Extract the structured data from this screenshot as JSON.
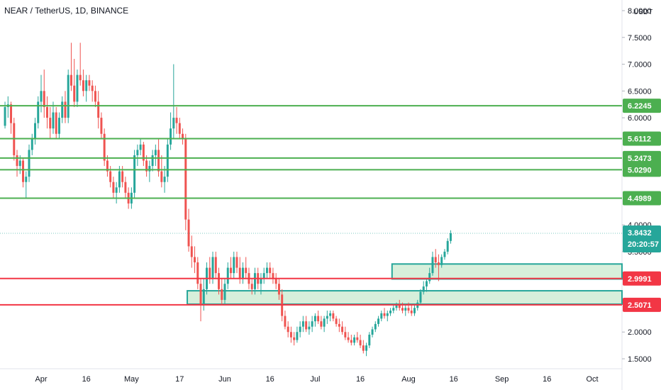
{
  "header": {
    "title": "NEAR / TetherUS, 1D, BINANCE",
    "currency": "USDT"
  },
  "colors": {
    "up": "#26a69a",
    "down": "#ef5350",
    "support": "#4caf50",
    "resistance": "#f23645",
    "zone_fill": "#d7efdb",
    "zone_stroke": "#26a69a",
    "price_tag": "#26a69a"
  },
  "price_axis": {
    "ticks": [
      "8.0000",
      "7.5000",
      "7.0000",
      "6.5000",
      "6.0000",
      "4.0000",
      "3.5000",
      "2.0000",
      "1.5000"
    ]
  },
  "time_axis": {
    "labels": [
      "Apr",
      "16",
      "May",
      "17",
      "Jun",
      "16",
      "Jul",
      "16",
      "Aug",
      "16",
      "Sep",
      "16",
      "Oct"
    ]
  },
  "levels": [
    {
      "price": 6.2245,
      "label": "6.2245",
      "kind": "support"
    },
    {
      "price": 5.6112,
      "label": "5.6112",
      "kind": "support"
    },
    {
      "price": 5.2473,
      "label": "5.2473",
      "kind": "support"
    },
    {
      "price": 5.029,
      "label": "5.0290",
      "kind": "support"
    },
    {
      "price": 4.4989,
      "label": "4.4989",
      "kind": "support"
    },
    {
      "price": 2.9991,
      "label": "2.9991",
      "kind": "resistance"
    },
    {
      "price": 2.5071,
      "label": "2.5071",
      "kind": "resistance"
    }
  ],
  "current_price": {
    "price": 3.8432,
    "label": "3.8432",
    "countdown": "20:20:57"
  },
  "zones": [
    {
      "from_date": "Jul 27",
      "top": 3.27,
      "bottom": 2.99
    },
    {
      "from_date": "May 20",
      "top": 2.77,
      "bottom": 2.52
    }
  ],
  "chart_data": {
    "type": "candlestick",
    "title": "NEAR / TetherUS, 1D, BINANCE",
    "ylabel": "USDT",
    "ylim": [
      1.35,
      8.1
    ],
    "y_scale": "linear",
    "x_range": [
      "Mar 20",
      "Oct 11"
    ],
    "candles": [
      [
        "Mar 20",
        5.85,
        6.3,
        5.8,
        6.2
      ],
      [
        "Mar 21",
        6.2,
        6.4,
        6.0,
        6.25
      ],
      [
        "Mar 22",
        6.25,
        6.3,
        5.7,
        5.9
      ],
      [
        "Mar 23",
        5.9,
        6.0,
        5.2,
        5.3
      ],
      [
        "Mar 24",
        5.3,
        5.4,
        4.9,
        5.1
      ],
      [
        "Mar 25",
        5.1,
        5.3,
        4.95,
        5.2
      ],
      [
        "Mar 26",
        5.2,
        5.25,
        4.7,
        4.8
      ],
      [
        "Mar 27",
        4.8,
        5.0,
        4.5,
        4.9
      ],
      [
        "Mar 28",
        4.9,
        5.5,
        4.8,
        5.4
      ],
      [
        "Mar 29",
        5.4,
        5.7,
        5.3,
        5.6
      ],
      [
        "Mar 30",
        5.6,
        6.0,
        5.5,
        5.9
      ],
      [
        "Mar 31",
        5.9,
        6.4,
        5.8,
        6.3
      ],
      [
        "Apr 1",
        6.3,
        6.8,
        6.1,
        6.5
      ],
      [
        "Apr 2",
        6.5,
        6.9,
        6.0,
        6.2
      ],
      [
        "Apr 3",
        6.2,
        6.4,
        5.8,
        6.0
      ],
      [
        "Apr 4",
        6.0,
        6.2,
        5.6,
        5.8
      ],
      [
        "Apr 5",
        5.8,
        6.3,
        5.7,
        6.1
      ],
      [
        "Apr 6",
        6.1,
        6.2,
        5.6,
        5.7
      ],
      [
        "Apr 7",
        5.7,
        6.1,
        5.6,
        6.0
      ],
      [
        "Apr 8",
        6.0,
        6.4,
        5.9,
        6.3
      ],
      [
        "Apr 9",
        6.3,
        6.5,
        5.9,
        6.0
      ],
      [
        "Apr 10",
        6.0,
        6.9,
        5.9,
        6.8
      ],
      [
        "Apr 11",
        6.8,
        7.4,
        6.5,
        6.6
      ],
      [
        "Apr 12",
        6.6,
        7.1,
        6.2,
        6.3
      ],
      [
        "Apr 13",
        6.3,
        6.9,
        6.2,
        6.8
      ],
      [
        "Apr 14",
        6.8,
        7.4,
        6.6,
        6.7
      ],
      [
        "Apr 15",
        6.7,
        6.9,
        6.4,
        6.5
      ],
      [
        "Apr 16",
        6.5,
        6.8,
        6.3,
        6.7
      ],
      [
        "Apr 17",
        6.7,
        6.8,
        6.5,
        6.6
      ],
      [
        "Apr 18",
        6.6,
        6.7,
        6.3,
        6.5
      ],
      [
        "Apr 19",
        6.5,
        6.6,
        6.2,
        6.3
      ],
      [
        "Apr 20",
        6.3,
        6.5,
        5.8,
        6.0
      ],
      [
        "Apr 21",
        6.0,
        6.1,
        5.6,
        5.7
      ],
      [
        "Apr 22",
        5.7,
        5.8,
        5.1,
        5.2
      ],
      [
        "Apr 23",
        5.2,
        5.3,
        4.9,
        5.0
      ],
      [
        "Apr 24",
        5.0,
        5.1,
        4.7,
        4.8
      ],
      [
        "Apr 25",
        4.8,
        4.9,
        4.5,
        4.6
      ],
      [
        "Apr 26",
        4.6,
        4.8,
        4.4,
        4.7
      ],
      [
        "Apr 27",
        4.7,
        5.1,
        4.6,
        5.0
      ],
      [
        "Apr 28",
        5.0,
        5.1,
        4.7,
        4.8
      ],
      [
        "Apr 29",
        4.8,
        4.9,
        4.5,
        4.6
      ],
      [
        "Apr 30",
        4.6,
        4.7,
        4.3,
        4.4
      ],
      [
        "May 1",
        4.4,
        4.7,
        4.3,
        4.6
      ],
      [
        "May 2",
        4.6,
        5.4,
        4.5,
        5.3
      ],
      [
        "May 3",
        5.3,
        5.5,
        5.1,
        5.4
      ],
      [
        "May 4",
        5.4,
        5.6,
        5.3,
        5.5
      ],
      [
        "May 5",
        5.5,
        5.55,
        5.1,
        5.2
      ],
      [
        "May 6",
        5.2,
        5.3,
        4.9,
        5.0
      ],
      [
        "May 7",
        5.0,
        5.2,
        4.8,
        5.1
      ],
      [
        "May 8",
        5.1,
        5.4,
        5.0,
        5.3
      ],
      [
        "May 9",
        5.3,
        5.5,
        5.1,
        5.4
      ],
      [
        "May 10",
        5.4,
        5.6,
        4.9,
        5.0
      ],
      [
        "May 11",
        5.0,
        5.3,
        4.7,
        4.8
      ],
      [
        "May 12",
        4.8,
        5.1,
        4.6,
        4.9
      ],
      [
        "May 13",
        4.9,
        5.6,
        4.8,
        5.5
      ],
      [
        "May 14",
        5.5,
        6.1,
        5.4,
        5.8
      ],
      [
        "May 15",
        5.8,
        7.0,
        5.6,
        6.0
      ],
      [
        "May 16",
        6.0,
        6.2,
        5.7,
        5.9
      ],
      [
        "May 17",
        5.9,
        6.0,
        5.6,
        5.7
      ],
      [
        "May 18",
        5.7,
        5.8,
        5.5,
        5.6
      ],
      [
        "May 19",
        5.6,
        5.7,
        3.9,
        4.1
      ],
      [
        "May 20",
        4.1,
        4.3,
        3.5,
        3.6
      ],
      [
        "May 21",
        3.6,
        3.8,
        3.2,
        3.4
      ],
      [
        "May 22",
        3.4,
        3.6,
        3.1,
        3.3
      ],
      [
        "May 23",
        3.3,
        3.4,
        2.8,
        2.9
      ],
      [
        "May 24",
        2.9,
        3.0,
        2.2,
        2.5
      ],
      [
        "May 25",
        2.5,
        3.0,
        2.4,
        2.8
      ],
      [
        "May 26",
        2.8,
        3.3,
        2.7,
        3.2
      ],
      [
        "May 27",
        3.2,
        3.4,
        2.9,
        3.0
      ],
      [
        "May 28",
        3.0,
        3.5,
        2.9,
        3.4
      ],
      [
        "May 29",
        3.4,
        3.5,
        3.0,
        3.1
      ],
      [
        "May 30",
        3.1,
        3.2,
        2.7,
        2.8
      ],
      [
        "May 31",
        2.8,
        3.0,
        2.5,
        2.6
      ],
      [
        "Jun 1",
        2.6,
        3.0,
        2.5,
        2.9
      ],
      [
        "Jun 2",
        2.9,
        3.3,
        2.8,
        3.2
      ],
      [
        "Jun 3",
        3.2,
        3.4,
        3.0,
        3.1
      ],
      [
        "Jun 4",
        3.1,
        3.5,
        3.0,
        3.4
      ],
      [
        "Jun 5",
        3.4,
        3.5,
        3.1,
        3.2
      ],
      [
        "Jun 6",
        3.2,
        3.4,
        2.9,
        3.0
      ],
      [
        "Jun 7",
        3.0,
        3.3,
        2.9,
        3.2
      ],
      [
        "Jun 8",
        3.2,
        3.4,
        3.0,
        3.1
      ],
      [
        "Jun 9",
        3.1,
        3.2,
        2.8,
        2.9
      ],
      [
        "Jun 10",
        2.9,
        3.0,
        2.7,
        2.8
      ],
      [
        "Jun 11",
        2.8,
        3.2,
        2.7,
        3.1
      ],
      [
        "Jun 12",
        3.1,
        3.2,
        2.8,
        2.9
      ],
      [
        "Jun 13",
        2.9,
        3.1,
        2.7,
        3.0
      ],
      [
        "Jun 14",
        3.0,
        3.2,
        2.9,
        3.1
      ],
      [
        "Jun 15",
        3.1,
        3.3,
        3.0,
        3.2
      ],
      [
        "Jun 16",
        3.2,
        3.3,
        3.0,
        3.1
      ],
      [
        "Jun 17",
        3.1,
        3.2,
        2.9,
        3.0
      ],
      [
        "Jun 18",
        3.0,
        3.1,
        2.8,
        2.9
      ],
      [
        "Jun 19",
        2.9,
        3.0,
        2.6,
        2.7
      ],
      [
        "Jun 20",
        2.7,
        2.8,
        2.2,
        2.3
      ],
      [
        "Jun 21",
        2.3,
        2.4,
        2.05,
        2.1
      ],
      [
        "Jun 22",
        2.1,
        2.2,
        1.9,
        2.0
      ],
      [
        "Jun 23",
        2.0,
        2.1,
        1.8,
        1.9
      ],
      [
        "Jun 24",
        1.9,
        2.0,
        1.75,
        1.85
      ],
      [
        "Jun 25",
        1.85,
        2.1,
        1.8,
        2.0
      ],
      [
        "Jun 26",
        2.0,
        2.2,
        1.9,
        2.1
      ],
      [
        "Jun 27",
        2.1,
        2.3,
        2.0,
        2.2
      ],
      [
        "Jun 28",
        2.2,
        2.3,
        2.0,
        2.05
      ],
      [
        "Jun 29",
        2.05,
        2.2,
        1.95,
        2.1
      ],
      [
        "Jun 30",
        2.1,
        2.3,
        2.0,
        2.2
      ],
      [
        "Jul 1",
        2.2,
        2.35,
        2.1,
        2.3
      ],
      [
        "Jul 2",
        2.3,
        2.4,
        2.15,
        2.2
      ],
      [
        "Jul 3",
        2.2,
        2.3,
        2.05,
        2.1
      ],
      [
        "Jul 4",
        2.1,
        2.3,
        2.0,
        2.25
      ],
      [
        "Jul 5",
        2.25,
        2.4,
        2.15,
        2.3
      ],
      [
        "Jul 6",
        2.3,
        2.4,
        2.2,
        2.35
      ],
      [
        "Jul 7",
        2.35,
        2.4,
        2.2,
        2.25
      ],
      [
        "Jul 8",
        2.25,
        2.3,
        2.1,
        2.15
      ],
      [
        "Jul 9",
        2.15,
        2.25,
        2.0,
        2.1
      ],
      [
        "Jul 10",
        2.1,
        2.2,
        1.95,
        2.0
      ],
      [
        "Jul 11",
        2.0,
        2.1,
        1.85,
        1.9
      ],
      [
        "Jul 12",
        1.9,
        2.0,
        1.8,
        1.85
      ],
      [
        "Jul 13",
        1.85,
        1.95,
        1.75,
        1.8
      ],
      [
        "Jul 14",
        1.8,
        1.95,
        1.75,
        1.9
      ],
      [
        "Jul 15",
        1.9,
        2.0,
        1.8,
        1.85
      ],
      [
        "Jul 16",
        1.85,
        1.95,
        1.7,
        1.75
      ],
      [
        "Jul 17",
        1.75,
        1.85,
        1.6,
        1.65
      ],
      [
        "Jul 18",
        1.65,
        1.8,
        1.55,
        1.75
      ],
      [
        "Jul 19",
        1.75,
        2.0,
        1.7,
        1.95
      ],
      [
        "Jul 20",
        1.95,
        2.1,
        1.9,
        2.05
      ],
      [
        "Jul 21",
        2.05,
        2.2,
        2.0,
        2.15
      ],
      [
        "Jul 22",
        2.15,
        2.3,
        2.1,
        2.25
      ],
      [
        "Jul 23",
        2.25,
        2.4,
        2.2,
        2.35
      ],
      [
        "Jul 24",
        2.35,
        2.45,
        2.25,
        2.3
      ],
      [
        "Jul 25",
        2.3,
        2.4,
        2.2,
        2.35
      ],
      [
        "Jul 26",
        2.35,
        2.45,
        2.3,
        2.4
      ],
      [
        "Jul 27",
        2.4,
        2.5,
        2.35,
        2.45
      ],
      [
        "Jul 28",
        2.45,
        2.55,
        2.4,
        2.5
      ],
      [
        "Jul 29",
        2.5,
        2.6,
        2.4,
        2.45
      ],
      [
        "Jul 30",
        2.45,
        2.55,
        2.35,
        2.4
      ],
      [
        "Jul 31",
        2.4,
        2.5,
        2.3,
        2.45
      ],
      [
        "Aug 1",
        2.45,
        2.55,
        2.35,
        2.4
      ],
      [
        "Aug 2",
        2.4,
        2.5,
        2.3,
        2.35
      ],
      [
        "Aug 3",
        2.35,
        2.5,
        2.3,
        2.45
      ],
      [
        "Aug 4",
        2.45,
        2.6,
        2.4,
        2.55
      ],
      [
        "Aug 5",
        2.55,
        2.8,
        2.5,
        2.75
      ],
      [
        "Aug 6",
        2.75,
        2.95,
        2.7,
        2.85
      ],
      [
        "Aug 7",
        2.85,
        3.0,
        2.75,
        2.95
      ],
      [
        "Aug 8",
        2.95,
        3.2,
        2.9,
        3.1
      ],
      [
        "Aug 9",
        3.1,
        3.5,
        3.05,
        3.4
      ],
      [
        "Aug 10",
        3.4,
        3.55,
        3.2,
        3.3
      ],
      [
        "Aug 11",
        3.3,
        3.45,
        2.95,
        3.25
      ],
      [
        "Aug 12",
        3.25,
        3.45,
        3.2,
        3.4
      ],
      [
        "Aug 13",
        3.4,
        3.55,
        3.35,
        3.5
      ],
      [
        "Aug 14",
        3.5,
        3.75,
        3.45,
        3.7
      ],
      [
        "Aug 15",
        3.7,
        3.9,
        3.65,
        3.8432
      ]
    ]
  }
}
